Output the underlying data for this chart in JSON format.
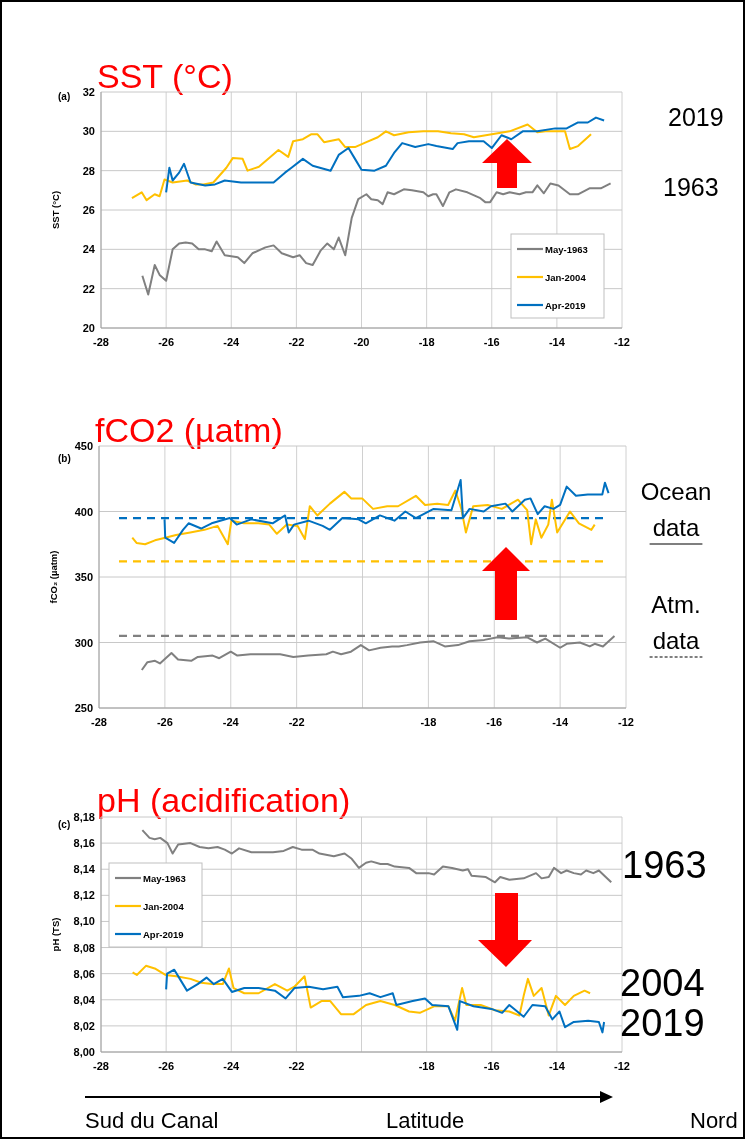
{
  "chart_data": [
    {
      "type": "line",
      "title": "SST (°C)",
      "ylabel": "SST (°C)",
      "annotations": [
        "(a)",
        "2019",
        "1963"
      ],
      "xlim": [
        -28,
        -12
      ],
      "xticks": [
        -28,
        -26,
        -24,
        -22,
        -20,
        -18,
        -16,
        -14,
        -12
      ],
      "ylim": [
        20,
        32
      ],
      "yticks": [
        20,
        22,
        24,
        26,
        28,
        30,
        32
      ],
      "grid": true,
      "legend": "bottom right",
      "series": [
        {
          "name": "May-1963",
          "color": "#808080",
          "x": [
            -26.73,
            -26.55,
            -26.35,
            -26.2,
            -26.0,
            -25.8,
            -25.6,
            -25.4,
            -25.2,
            -25.0,
            -24.8,
            -24.6,
            -24.45,
            -24.2,
            -23.8,
            -23.6,
            -23.35,
            -22.95,
            -22.7,
            -22.45,
            -22.1,
            -21.9,
            -21.7,
            -21.5,
            -21.25,
            -21.05,
            -20.85,
            -20.7,
            -20.5,
            -20.3,
            -20.1,
            -19.85,
            -19.7,
            -19.5,
            -19.35,
            -19.2,
            -19.0,
            -18.7,
            -18.45,
            -18.1,
            -17.95,
            -17.8,
            -17.7,
            -17.5,
            -17.3,
            -17.1,
            -16.75,
            -16.35,
            -16.2,
            -16.05,
            -15.85,
            -15.65,
            -15.45,
            -15.15,
            -14.95,
            -14.75,
            -14.6,
            -14.4,
            -14.2,
            -13.95,
            -13.6,
            -13.35,
            -13.0,
            -12.65,
            -12.35
          ],
          "values": [
            22.66,
            21.7,
            23.2,
            22.7,
            22.4,
            24.0,
            24.3,
            24.35,
            24.3,
            24.0,
            24.0,
            23.9,
            24.4,
            23.7,
            23.6,
            23.3,
            23.8,
            24.1,
            24.2,
            23.8,
            23.6,
            23.7,
            23.3,
            23.2,
            23.95,
            24.3,
            24.0,
            24.6,
            23.7,
            25.6,
            26.55,
            26.8,
            26.55,
            26.5,
            26.3,
            26.9,
            26.8,
            27.05,
            27.0,
            26.9,
            26.7,
            26.8,
            26.8,
            26.2,
            26.9,
            27.05,
            26.9,
            26.6,
            26.4,
            26.4,
            26.9,
            26.8,
            26.9,
            26.8,
            26.9,
            26.9,
            27.25,
            26.85,
            27.35,
            27.25,
            26.8,
            26.8,
            27.1,
            27.1,
            27.35
          ]
        },
        {
          "name": "Jan-2004",
          "color": "#ffc000",
          "x": [
            -27.05,
            -26.75,
            -26.6,
            -26.35,
            -26.2,
            -26.05,
            -25.8,
            -25.35,
            -25.1,
            -24.85,
            -24.55,
            -24.15,
            -23.95,
            -23.65,
            -23.5,
            -23.15,
            -22.8,
            -22.55,
            -22.25,
            -22.1,
            -21.8,
            -21.55,
            -21.35,
            -21.15,
            -20.7,
            -20.5,
            -20.2,
            -19.85,
            -19.5,
            -19.25,
            -19.0,
            -18.55,
            -18.1,
            -17.65,
            -17.25,
            -16.85,
            -16.55,
            -16.0,
            -15.45,
            -14.9,
            -14.6,
            -14.35,
            -13.75,
            -13.6,
            -13.35,
            -12.95
          ],
          "values": [
            26.6,
            26.9,
            26.5,
            26.8,
            26.7,
            27.55,
            27.4,
            27.5,
            27.3,
            27.3,
            27.4,
            28.15,
            28.65,
            28.6,
            28.0,
            28.2,
            28.7,
            29.05,
            28.7,
            29.5,
            29.6,
            29.85,
            29.85,
            29.45,
            29.6,
            29.2,
            29.2,
            29.45,
            29.7,
            30.0,
            29.8,
            29.95,
            30.0,
            30.0,
            29.9,
            29.85,
            29.7,
            29.85,
            30.0,
            30.35,
            29.95,
            30.0,
            30.0,
            29.1,
            29.25,
            29.85
          ]
        },
        {
          "name": "Apr-2019",
          "color": "#0070c0",
          "x": [
            -26.0,
            -25.9,
            -25.8,
            -25.6,
            -25.45,
            -25.25,
            -24.8,
            -24.5,
            -24.2,
            -23.7,
            -23.15,
            -22.7,
            -22.35,
            -22.15,
            -21.8,
            -21.5,
            -20.95,
            -20.7,
            -20.4,
            -20.2,
            -20.0,
            -19.6,
            -19.25,
            -19.0,
            -18.75,
            -18.35,
            -17.95,
            -17.7,
            -17.2,
            -17.05,
            -16.7,
            -16.25,
            -16.0,
            -15.7,
            -15.4,
            -15.05,
            -14.6,
            -14.05,
            -13.7,
            -13.35,
            -13.05,
            -12.8,
            -12.55
          ],
          "values": [
            26.9,
            28.15,
            27.5,
            27.9,
            28.35,
            27.4,
            27.25,
            27.3,
            27.5,
            27.4,
            27.4,
            27.4,
            27.9,
            28.15,
            28.6,
            28.25,
            28.0,
            28.8,
            29.15,
            28.6,
            28.05,
            28.0,
            28.25,
            28.9,
            29.4,
            29.2,
            29.35,
            29.25,
            29.1,
            29.4,
            29.5,
            29.5,
            29.15,
            29.8,
            29.6,
            30.0,
            30.0,
            30.15,
            30.15,
            30.45,
            30.45,
            30.7,
            30.55
          ]
        }
      ]
    },
    {
      "type": "line",
      "title": "fCO2 (µatm)",
      "ylabel": "fCO₂ (µatm)",
      "annotations": [
        "(b)",
        "Ocean data",
        "Atm. data"
      ],
      "xlim": [
        -28,
        -12
      ],
      "xticks": [
        -28,
        -26,
        -24,
        -22,
        {
          "value": -20,
          "label": null
        },
        -18,
        -16,
        -14,
        -12
      ],
      "ylim": [
        250,
        450
      ],
      "yticks": [
        250,
        300,
        350,
        400,
        450
      ],
      "grid": true,
      "ref_lines": [
        {
          "axis": "y",
          "value": 395,
          "color": "#0070c0",
          "line_style": "dashed"
        },
        {
          "axis": "y",
          "value": 362,
          "color": "#ffc000",
          "line_style": "dashed"
        },
        {
          "axis": "y",
          "value": 305,
          "color": "#808080",
          "line_style": "dashed"
        }
      ],
      "series": [
        {
          "color": "#808080",
          "x": [
            -26.7,
            -26.53,
            -26.3,
            -26.15,
            -25.8,
            -25.6,
            -25.2,
            -25.0,
            -24.55,
            -24.35,
            -24.0,
            -23.8,
            -23.4,
            -22.5,
            -22.1,
            -21.65,
            -21.1,
            -20.9,
            -20.65,
            -20.35,
            -20.05,
            -19.8,
            -19.45,
            -19.1,
            -18.9,
            -18.65,
            -18.25,
            -17.85,
            -17.5,
            -17.1,
            -16.75,
            -16.3,
            -15.9,
            -15.55,
            -15.0,
            -14.7,
            -14.45,
            -14.0,
            -13.8,
            -13.4,
            -13.1,
            -12.95,
            -12.7,
            -12.35
          ],
          "values": [
            279,
            285,
            286,
            284,
            292,
            287,
            286,
            289,
            290,
            288,
            293,
            290,
            291,
            291,
            289,
            290,
            291,
            293,
            291,
            293,
            298,
            294,
            296,
            297,
            297,
            298,
            300,
            301,
            297,
            298,
            301,
            302,
            304,
            303,
            304,
            300,
            303,
            296,
            299,
            300,
            297,
            299,
            297,
            305
          ]
        },
        {
          "color": "#ffc000",
          "x": [
            -26.99,
            -26.86,
            -26.6,
            -26.3,
            -25.99,
            -25.66,
            -25.23,
            -24.8,
            -24.4,
            -24.09,
            -23.98,
            -23.6,
            -23.16,
            -22.83,
            -22.6,
            -22.3,
            -21.97,
            -21.75,
            -21.6,
            -21.37,
            -20.99,
            -20.55,
            -20.34,
            -20.01,
            -19.68,
            -19.25,
            -18.92,
            -18.38,
            -18.1,
            -17.73,
            -17.4,
            -17.18,
            -17.0,
            -16.86,
            -16.64,
            -16.2,
            -15.77,
            -15.28,
            -15.0,
            -14.88,
            -14.74,
            -14.57,
            -14.36,
            -14.25,
            -14.09,
            -13.7,
            -13.43,
            -13.05,
            -12.95
          ],
          "values": [
            380,
            376,
            375,
            378,
            380,
            382,
            384,
            386,
            389,
            375,
            393,
            391,
            391,
            390,
            383,
            390,
            389,
            379,
            404,
            397,
            406,
            415,
            410,
            410,
            402,
            404,
            404,
            412,
            405,
            406,
            405,
            416,
            402,
            384,
            404,
            405,
            402,
            409,
            401,
            375,
            394,
            380,
            390,
            409,
            384,
            400,
            391,
            386,
            390
          ]
        },
        {
          "color": "#0070c0",
          "x": [
            -26.01,
            -25.99,
            -25.72,
            -25.45,
            -25.28,
            -24.9,
            -24.58,
            -24.03,
            -23.82,
            -23.38,
            -22.73,
            -22.35,
            -22.24,
            -22.08,
            -21.64,
            -21.21,
            -20.99,
            -20.61,
            -20.12,
            -19.9,
            -19.47,
            -19.03,
            -18.7,
            -18.38,
            -17.84,
            -17.3,
            -17.02,
            -16.95,
            -16.75,
            -16.32,
            -16.1,
            -15.66,
            -15.45,
            -15.07,
            -14.9,
            -14.68,
            -14.47,
            -14.2,
            -14.0,
            -13.8,
            -13.52,
            -13.16,
            -12.72,
            -12.64,
            -12.53
          ],
          "values": [
            394,
            380,
            376,
            386,
            391,
            387,
            391,
            395,
            390,
            394,
            391,
            397,
            384,
            390,
            393,
            389,
            386,
            395,
            394,
            391,
            397,
            393,
            400,
            395,
            402,
            401,
            424,
            395,
            402,
            400,
            404,
            406,
            400,
            409,
            410,
            398,
            404,
            402,
            405,
            419,
            412,
            413,
            413,
            422,
            414
          ]
        }
      ]
    },
    {
      "type": "line",
      "title": "pH (acidification)",
      "ylabel": "pH (TS)",
      "annotations": [
        "(c)",
        "1963",
        "2004",
        "2019",
        "Sud du Canal",
        "Latitude",
        "Nord"
      ],
      "xlim": [
        -28,
        -12
      ],
      "xticks": [
        -28,
        -26,
        -24,
        -22,
        {
          "value": -20,
          "label": null
        },
        -18,
        -16,
        -14,
        -12
      ],
      "ylim": [
        8,
        8.18
      ],
      "yticks": [
        {
          "value": 8,
          "label": "8,00"
        },
        {
          "value": 8.02,
          "label": "8,02"
        },
        {
          "value": 8.04,
          "label": "8,04"
        },
        {
          "value": 8.06,
          "label": "8,06"
        },
        {
          "value": 8.08,
          "label": "8,08"
        },
        {
          "value": 8.1,
          "label": "8,10"
        },
        {
          "value": 8.12,
          "label": "8,12"
        },
        {
          "value": 8.14,
          "label": "8,14"
        },
        {
          "value": 8.16,
          "label": "8,16"
        },
        {
          "value": 8.18,
          "label": "8,18"
        }
      ],
      "grid": true,
      "legend": "top left",
      "series": [
        {
          "name": "May-1963",
          "color": "#808080",
          "x": [
            -26.73,
            -26.51,
            -26.35,
            -26.18,
            -25.96,
            -25.8,
            -25.63,
            -25.25,
            -24.97,
            -24.7,
            -24.42,
            -24.2,
            -23.98,
            -23.76,
            -23.38,
            -22.72,
            -22.39,
            -22.11,
            -21.84,
            -21.51,
            -21.29,
            -20.85,
            -20.52,
            -20.3,
            -20.08,
            -19.86,
            -19.7,
            -19.42,
            -19.2,
            -18.98,
            -18.54,
            -18.32,
            -17.94,
            -17.77,
            -17.5,
            -17.22,
            -16.89,
            -16.73,
            -16.62,
            -16.18,
            -15.9,
            -15.74,
            -15.46,
            -15.02,
            -14.64,
            -14.47,
            -14.25,
            -14.09,
            -13.87,
            -13.7,
            -13.48,
            -13.26,
            -13.1,
            -12.88,
            -12.71,
            -12.33
          ],
          "values": [
            8.17,
            8.164,
            8.163,
            8.164,
            8.16,
            8.152,
            8.159,
            8.16,
            8.157,
            8.156,
            8.157,
            8.155,
            8.152,
            8.156,
            8.153,
            8.153,
            8.154,
            8.157,
            8.155,
            8.155,
            8.152,
            8.15,
            8.152,
            8.148,
            8.141,
            8.145,
            8.146,
            8.144,
            8.144,
            8.142,
            8.141,
            8.137,
            8.137,
            8.136,
            8.142,
            8.141,
            8.139,
            8.14,
            8.135,
            8.134,
            8.13,
            8.134,
            8.132,
            8.133,
            8.137,
            8.133,
            8.134,
            8.141,
            8.137,
            8.139,
            8.137,
            8.136,
            8.139,
            8.137,
            8.139,
            8.13
          ]
        },
        {
          "name": "Jan-2004",
          "color": "#ffc000",
          "x": [
            -27.03,
            -26.9,
            -26.62,
            -26.35,
            -26.02,
            -25.69,
            -25.25,
            -24.92,
            -24.59,
            -24.26,
            -24.07,
            -23.93,
            -23.6,
            -23.16,
            -22.66,
            -22.28,
            -22.06,
            -21.75,
            -21.56,
            -21.23,
            -20.96,
            -20.63,
            -20.24,
            -19.86,
            -19.42,
            -18.98,
            -18.54,
            -18.21,
            -17.77,
            -17.33,
            -17.13,
            -16.91,
            -16.78,
            -16.34,
            -15.9,
            -15.46,
            -15.15,
            -15.02,
            -14.89,
            -14.71,
            -14.47,
            -14.25,
            -14.03,
            -13.75,
            -13.48,
            -13.15,
            -12.98
          ],
          "values": [
            8.061,
            8.059,
            8.066,
            8.064,
            8.059,
            8.058,
            8.056,
            8.053,
            8.052,
            8.052,
            8.064,
            8.049,
            8.045,
            8.045,
            8.052,
            8.047,
            8.05,
            8.058,
            8.034,
            8.039,
            8.039,
            8.029,
            8.029,
            8.036,
            8.039,
            8.036,
            8.031,
            8.03,
            8.035,
            8.035,
            8.024,
            8.049,
            8.036,
            8.036,
            8.032,
            8.031,
            8.028,
            8.043,
            8.056,
            8.043,
            8.049,
            8.028,
            8.043,
            8.036,
            8.043,
            8.047,
            8.045
          ]
        },
        {
          "name": "Apr-2019",
          "color": "#0070c0",
          "x": [
            -26.0,
            -25.97,
            -25.75,
            -25.58,
            -25.36,
            -25.03,
            -24.76,
            -24.54,
            -24.26,
            -23.98,
            -23.6,
            -23.16,
            -22.66,
            -22.33,
            -22.06,
            -21.62,
            -21.18,
            -20.74,
            -20.57,
            -20.08,
            -19.75,
            -19.42,
            -19.04,
            -18.93,
            -18.43,
            -18.05,
            -17.83,
            -17.33,
            -17.06,
            -16.98,
            -16.56,
            -16.01,
            -15.68,
            -15.46,
            -15.02,
            -14.75,
            -14.36,
            -14.14,
            -13.92,
            -13.75,
            -13.48,
            -13.04,
            -12.71,
            -12.6,
            -12.55
          ],
          "values": [
            8.048,
            8.06,
            8.063,
            8.056,
            8.047,
            8.052,
            8.057,
            8.052,
            8.056,
            8.046,
            8.049,
            8.049,
            8.047,
            8.041,
            8.049,
            8.05,
            8.048,
            8.05,
            8.042,
            8.043,
            8.045,
            8.042,
            8.045,
            8.036,
            8.039,
            8.041,
            8.036,
            8.035,
            8.017,
            8.039,
            8.035,
            8.033,
            8.03,
            8.036,
            8.027,
            8.036,
            8.035,
            8.025,
            8.031,
            8.019,
            8.023,
            8.024,
            8.023,
            8.015,
            8.023
          ]
        }
      ]
    }
  ]
}
